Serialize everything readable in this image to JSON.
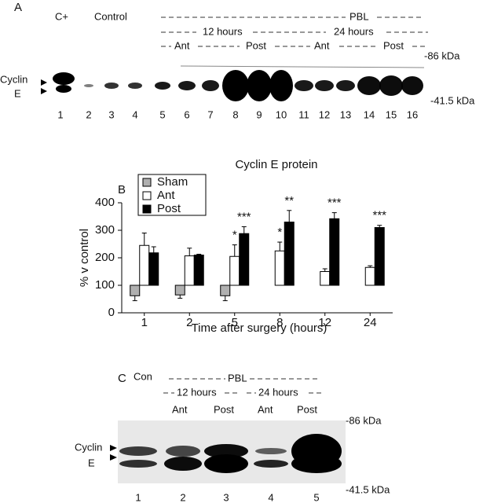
{
  "panel_a": {
    "label": "A",
    "c_plus": "C+",
    "control": "Control",
    "pbl": "PBL",
    "hours_12": "12 hours",
    "hours_24": "24 hours",
    "groups": [
      "Ant",
      "Post",
      "Ant",
      "Post"
    ],
    "marker_high": "-86 kDa",
    "marker_low": "-41.5 kDa",
    "band_label": [
      "Cyclin",
      "E"
    ],
    "lanes": [
      "1",
      "2",
      "3",
      "4",
      "5",
      "6",
      "7",
      "8",
      "9",
      "10",
      "11",
      "12",
      "13",
      "14",
      "15",
      "16"
    ]
  },
  "chart_data": {
    "type": "bar",
    "panel_label": "B",
    "title": "Cyclin E protein",
    "x_label": "Time after surgery (hours)",
    "y_label": "% v control",
    "categories": [
      "1",
      "2",
      "5",
      "8",
      "12",
      "24"
    ],
    "baseline": 100,
    "series": [
      {
        "name": "Sham",
        "color": "#b0b0b0",
        "values": [
          62,
          65,
          62,
          null,
          null,
          null
        ],
        "errors": [
          18,
          12,
          18,
          null,
          null,
          null
        ],
        "annotations": [
          null,
          null,
          null,
          null,
          null,
          null
        ]
      },
      {
        "name": "Ant",
        "color": "#ffffff",
        "values": [
          245,
          207,
          205,
          225,
          150,
          165
        ],
        "errors": [
          45,
          28,
          42,
          32,
          10,
          6
        ],
        "annotations": [
          null,
          null,
          "*",
          "*",
          null,
          null
        ]
      },
      {
        "name": "Post",
        "color": "#000000",
        "values": [
          218,
          210,
          288,
          330,
          342,
          310
        ],
        "errors": [
          22,
          3,
          25,
          42,
          22,
          8
        ],
        "annotations": [
          null,
          null,
          "***",
          "**",
          "***",
          "***"
        ]
      }
    ],
    "ylim": [
      0,
      400
    ],
    "yticks": [
      0,
      100,
      200,
      300,
      400
    ],
    "legend": "top-left"
  },
  "panel_c": {
    "label": "C",
    "con": "Con",
    "pbl": "PBL",
    "hours_12": "12 hours",
    "hours_24": "24 hours",
    "groups": [
      "Ant",
      "Post",
      "Ant",
      "Post"
    ],
    "marker_high": "-86 kDa",
    "marker_low": "-41.5 kDa",
    "band_label": [
      "Cyclin",
      "E"
    ],
    "lanes": [
      "1",
      "2",
      "3",
      "4",
      "5"
    ]
  }
}
